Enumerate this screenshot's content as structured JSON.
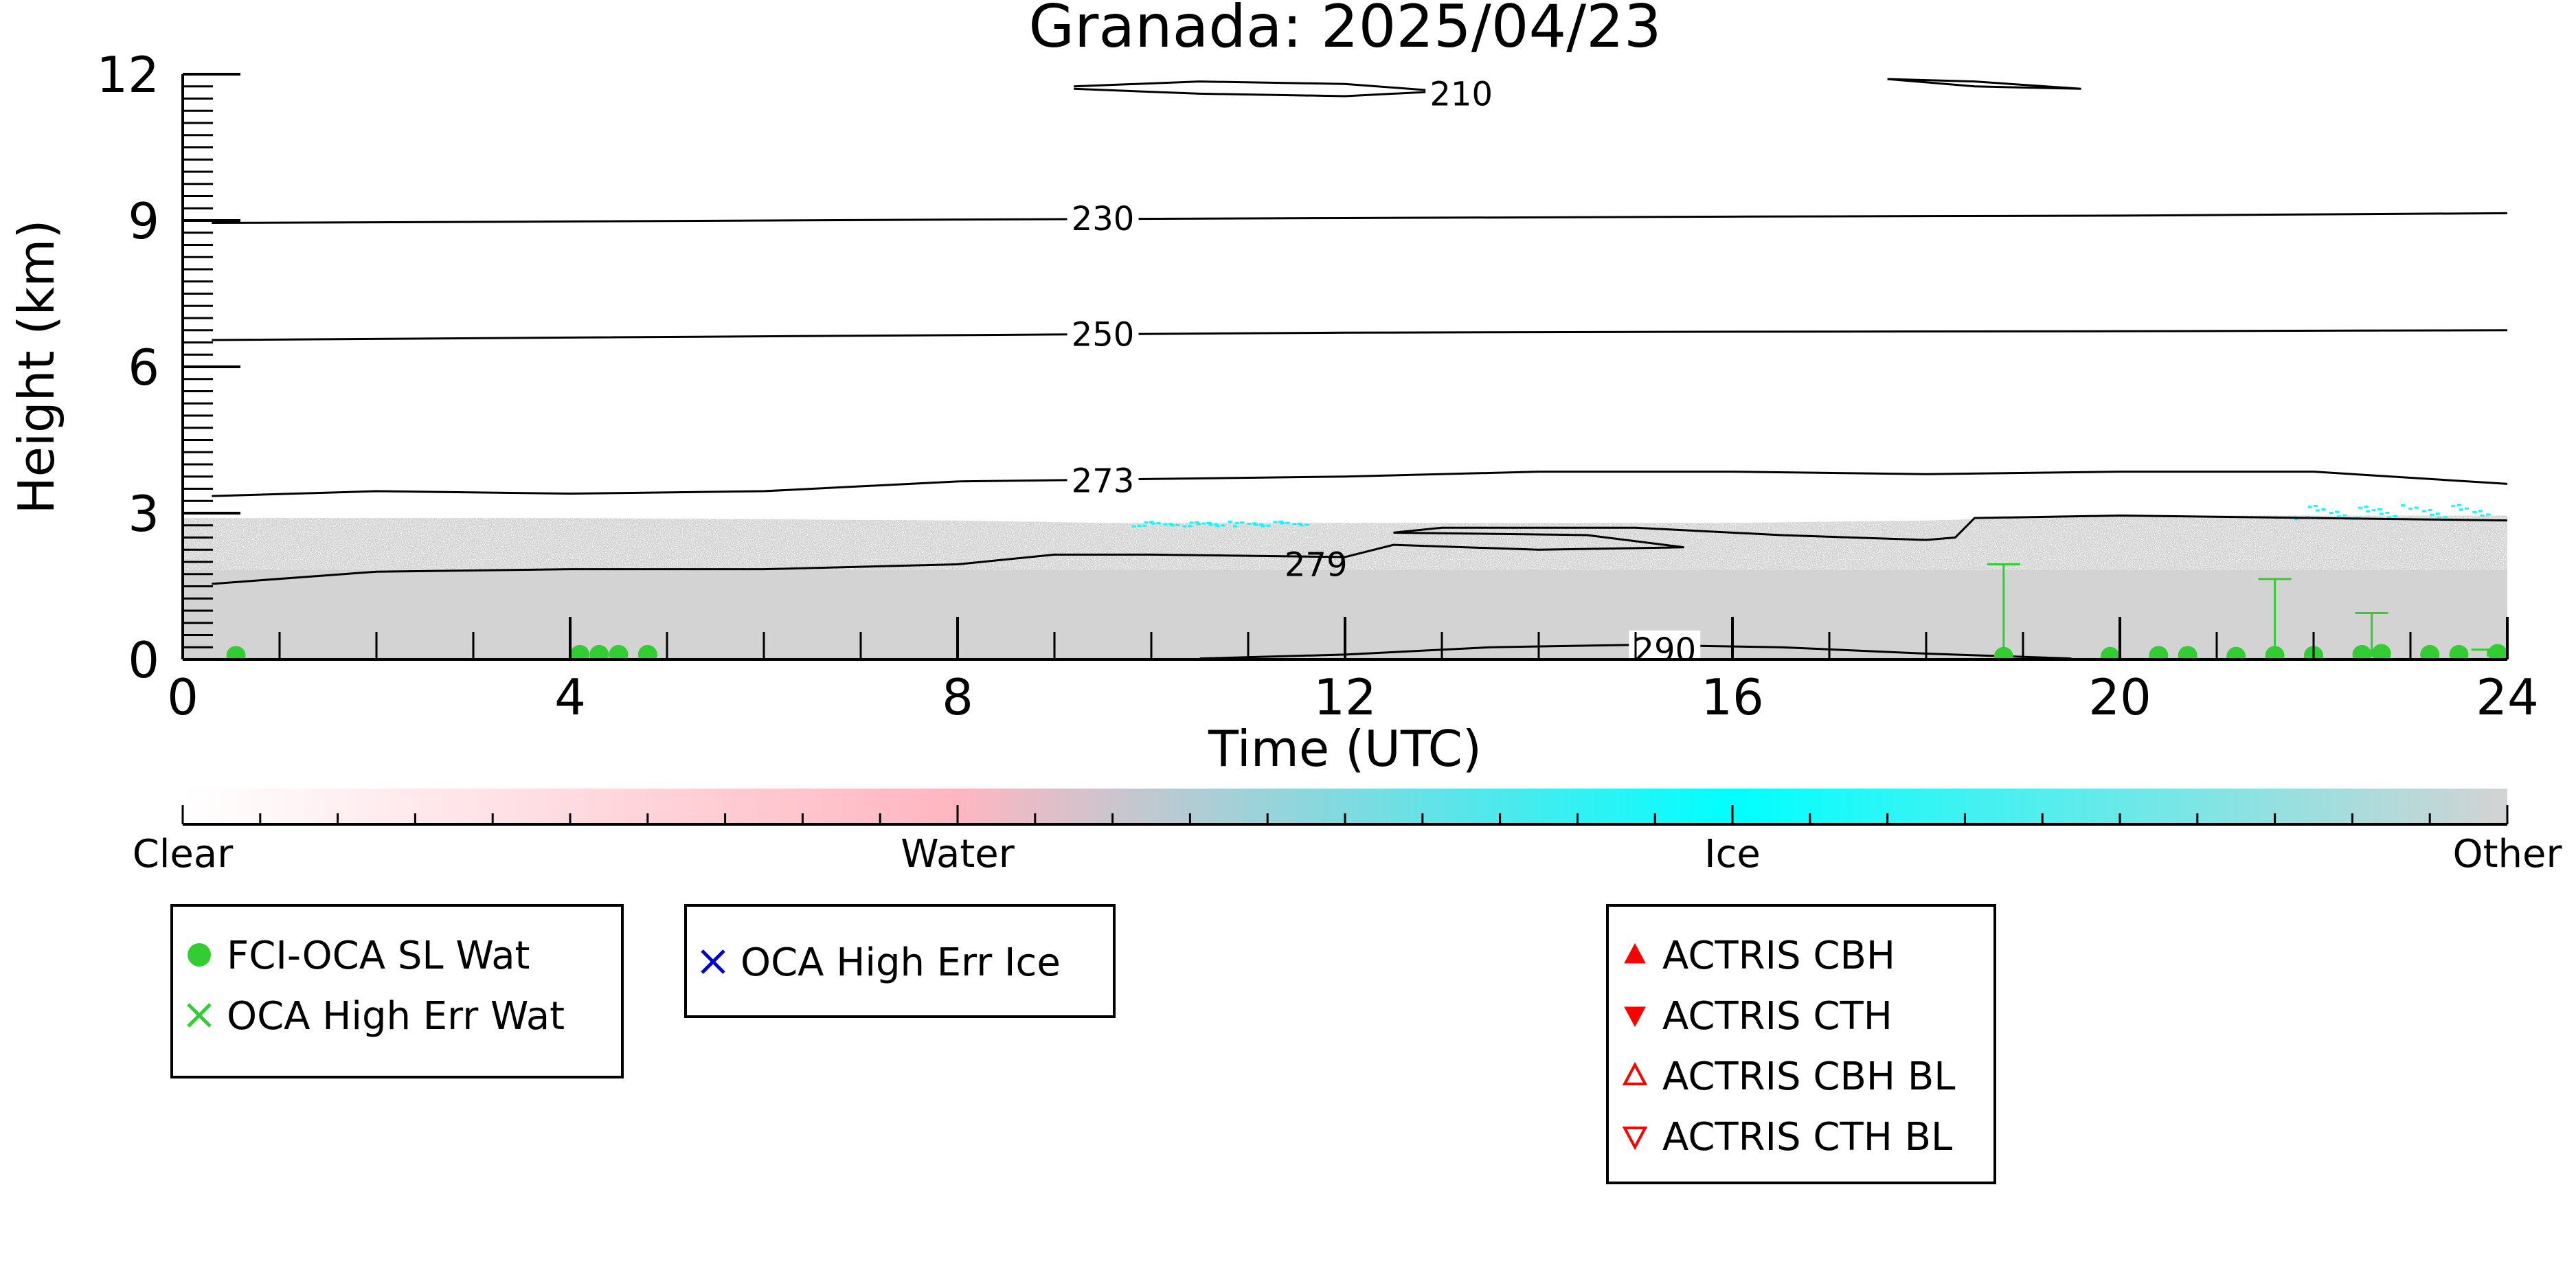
{
  "chart_data": {
    "type": "heatmap",
    "title": "Granada: 2025/04/23",
    "xlabel": "Time (UTC)",
    "ylabel": "Height (km)",
    "xlim": [
      0,
      24
    ],
    "ylim": [
      0,
      12
    ],
    "x_ticks": [
      0,
      4,
      8,
      12,
      16,
      20,
      24
    ],
    "y_ticks": [
      0,
      3,
      6,
      9,
      12
    ],
    "colorbar": {
      "labels": [
        "Clear",
        "Water",
        "Ice",
        "Other"
      ],
      "colors": [
        "#ffffff",
        "#ffb6c1",
        "#00ffff",
        "#d3d3d3"
      ]
    },
    "cloud_mask": {
      "class": "Other",
      "color": "#d3d3d3",
      "top_km": [
        [
          0,
          2.9
        ],
        [
          4,
          2.9
        ],
        [
          8,
          2.85
        ],
        [
          9.5,
          2.8
        ],
        [
          12,
          2.8
        ],
        [
          16,
          2.8
        ],
        [
          18,
          2.85
        ],
        [
          20,
          2.95
        ],
        [
          24,
          2.95
        ]
      ],
      "ice_patches": [
        [
          9.8,
          11.6,
          2.75,
          2.85
        ],
        [
          21.8,
          23.8,
          2.9,
          3.2
        ]
      ]
    },
    "temperature_contours": [
      {
        "label": "210",
        "points": [
          [
            9.2,
            11.75
          ],
          [
            10.5,
            11.85
          ],
          [
            12,
            11.8
          ],
          [
            13,
            11.65
          ],
          [
            12,
            11.55
          ],
          [
            10.5,
            11.6
          ],
          [
            9.2,
            11.7
          ]
        ]
      },
      {
        "label": "",
        "points": [
          [
            17.6,
            11.9
          ],
          [
            18.5,
            11.75
          ],
          [
            19.6,
            11.7
          ],
          [
            18.5,
            11.85
          ],
          [
            17.6,
            11.9
          ]
        ]
      },
      {
        "label": "230",
        "points": [
          [
            0.3,
            8.95
          ],
          [
            4,
            8.98
          ],
          [
            8,
            9.02
          ],
          [
            12,
            9.05
          ],
          [
            16,
            9.08
          ],
          [
            20,
            9.1
          ],
          [
            24,
            9.15
          ]
        ]
      },
      {
        "label": "250",
        "points": [
          [
            0.3,
            6.55
          ],
          [
            4,
            6.6
          ],
          [
            8,
            6.65
          ],
          [
            12,
            6.7
          ],
          [
            16,
            6.72
          ],
          [
            20,
            6.73
          ],
          [
            24,
            6.75
          ]
        ]
      },
      {
        "label": "273",
        "points": [
          [
            0.3,
            3.35
          ],
          [
            2,
            3.45
          ],
          [
            4,
            3.4
          ],
          [
            6,
            3.45
          ],
          [
            8,
            3.65
          ],
          [
            10,
            3.7
          ],
          [
            12,
            3.75
          ],
          [
            14,
            3.85
          ],
          [
            16,
            3.85
          ],
          [
            18,
            3.8
          ],
          [
            20,
            3.85
          ],
          [
            22,
            3.85
          ],
          [
            24,
            3.6
          ]
        ]
      },
      {
        "label": "279",
        "points": [
          [
            0.3,
            1.55
          ],
          [
            2,
            1.8
          ],
          [
            4,
            1.85
          ],
          [
            6,
            1.85
          ],
          [
            8,
            1.95
          ],
          [
            9,
            2.15
          ],
          [
            10,
            2.15
          ],
          [
            12,
            2.1
          ],
          [
            12.5,
            2.35
          ],
          [
            14,
            2.25
          ],
          [
            15.5,
            2.3
          ],
          [
            14.5,
            2.55
          ],
          [
            12.5,
            2.6
          ],
          [
            13,
            2.7
          ],
          [
            15,
            2.7
          ],
          [
            16.5,
            2.55
          ],
          [
            18,
            2.45
          ],
          [
            18.3,
            2.5
          ],
          [
            18.5,
            2.9
          ],
          [
            20,
            2.95
          ],
          [
            22,
            2.9
          ],
          [
            24,
            2.85
          ]
        ]
      },
      {
        "label": "290",
        "points": [
          [
            10.5,
            0.02
          ],
          [
            12,
            0.1
          ],
          [
            13.5,
            0.25
          ],
          [
            15,
            0.3
          ],
          [
            16.5,
            0.25
          ],
          [
            18,
            0.12
          ],
          [
            19.5,
            0.02
          ]
        ]
      }
    ],
    "series": [
      {
        "name": "FCI-OCA SL Wat",
        "color": "#32cd32",
        "marker": "circle",
        "points": [
          [
            0.55,
            0.08
          ],
          [
            4.1,
            0.1
          ],
          [
            4.3,
            0.1
          ],
          [
            4.5,
            0.1
          ],
          [
            4.8,
            0.1
          ],
          [
            18.8,
            0.06
          ],
          [
            19.9,
            0.06
          ],
          [
            20.4,
            0.08
          ],
          [
            20.7,
            0.08
          ],
          [
            21.2,
            0.06
          ],
          [
            21.6,
            0.08
          ],
          [
            22,
            0.08
          ],
          [
            22.5,
            0.1
          ],
          [
            22.7,
            0.12
          ],
          [
            23.2,
            0.1
          ],
          [
            23.5,
            0.1
          ],
          [
            23.9,
            0.12
          ]
        ],
        "error_bars": [
          [
            18.8,
            1.95
          ],
          [
            21.6,
            1.65
          ],
          [
            22.6,
            0.95
          ],
          [
            23.8,
            0.2
          ]
        ]
      },
      {
        "name": "OCA High Err Wat",
        "color": "#32cd32",
        "marker": "x",
        "points": []
      },
      {
        "name": "OCA High Err Ice",
        "color": "#0000cd",
        "marker": "x",
        "points": []
      },
      {
        "name": "ACTRIS CBH",
        "color": "#ff0000",
        "marker": "triangle-up",
        "points": []
      },
      {
        "name": "ACTRIS CTH",
        "color": "#ff0000",
        "marker": "triangle-down",
        "points": []
      },
      {
        "name": "ACTRIS CBH BL",
        "color": "#ff0000",
        "marker": "triangle-up-open",
        "points": []
      },
      {
        "name": "ACTRIS CTH BL",
        "color": "#ff0000",
        "marker": "triangle-down-open",
        "points": []
      }
    ],
    "legends": [
      {
        "entries": [
          "FCI-OCA SL Wat",
          "OCA High Err Wat"
        ]
      },
      {
        "entries": [
          "OCA High Err Ice"
        ]
      },
      {
        "entries": [
          "ACTRIS CBH",
          "ACTRIS CTH",
          "ACTRIS CBH BL",
          "ACTRIS CTH BL"
        ]
      }
    ]
  }
}
